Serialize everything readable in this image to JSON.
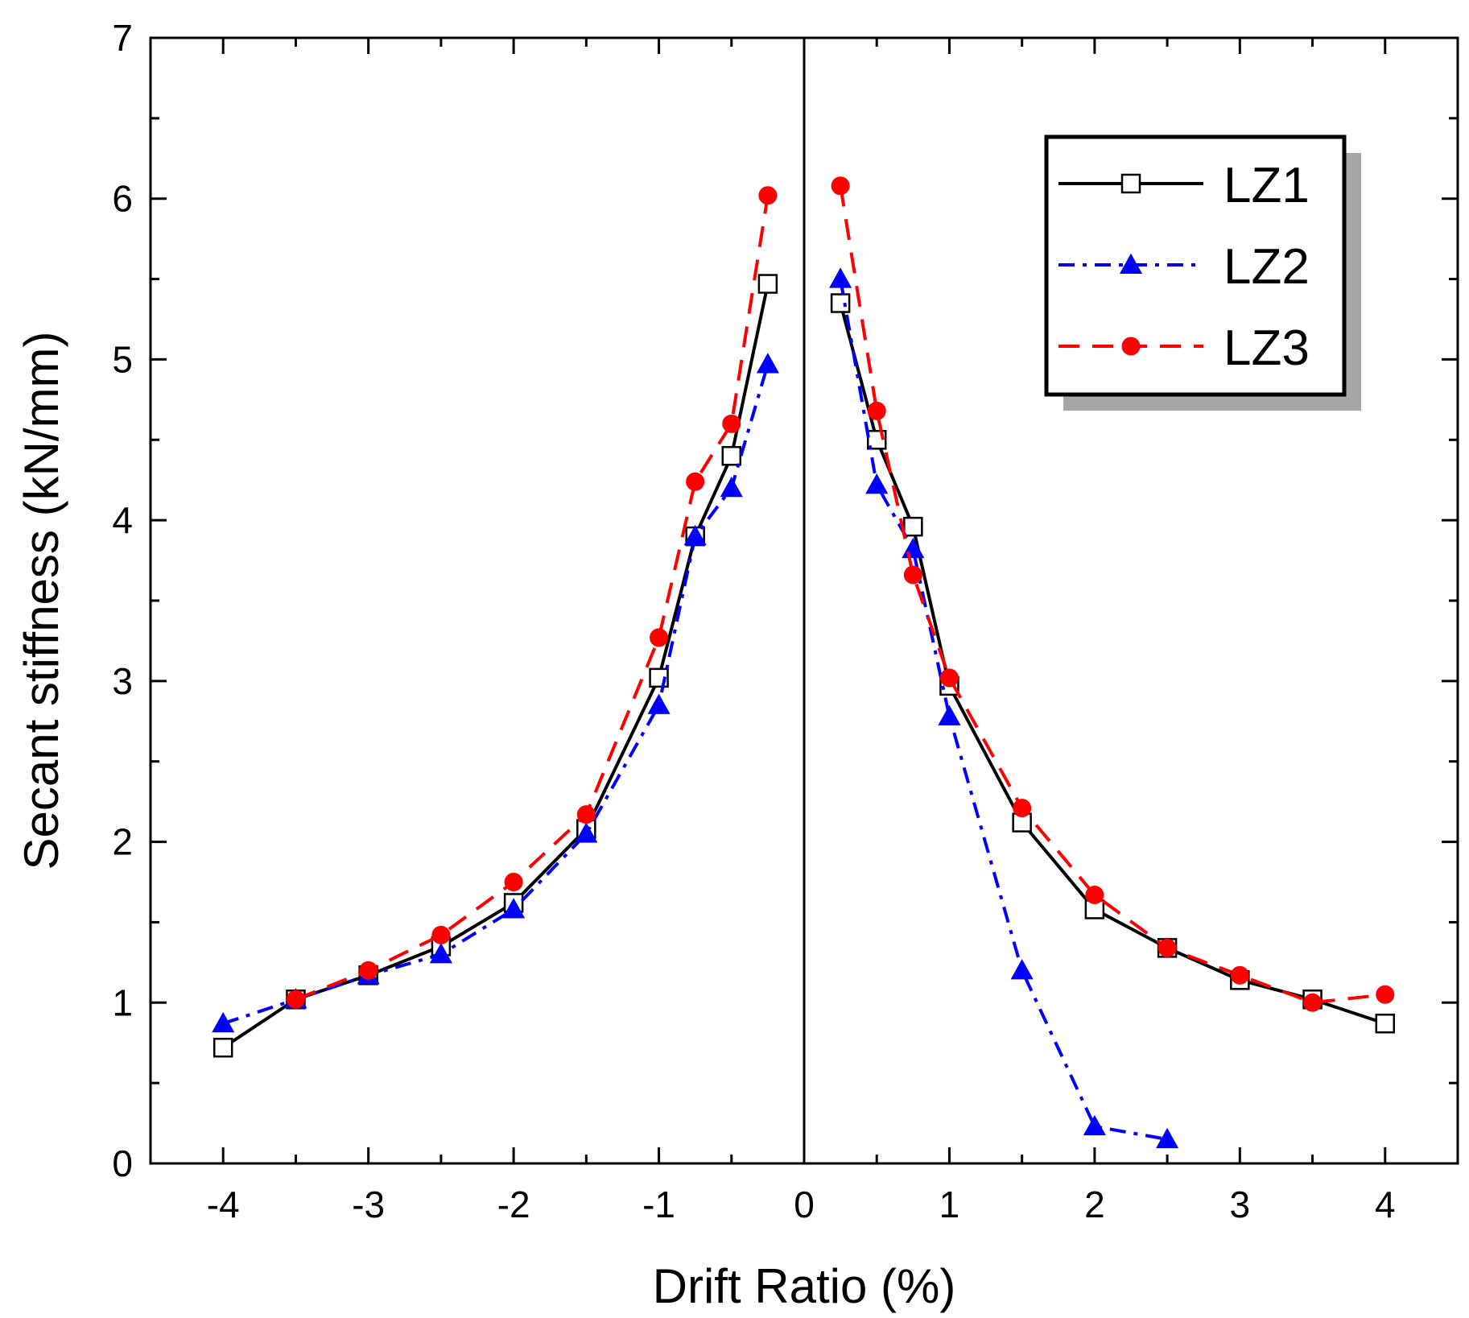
{
  "chart_data": {
    "type": "line",
    "xlabel": "Drift Ratio (%)",
    "ylabel": "Secant stiffness (kN/mm)",
    "xlim": [
      -4.5,
      4.5
    ],
    "ylim": [
      0,
      7
    ],
    "xticks": [
      -4,
      -3,
      -2,
      -1,
      0,
      1,
      2,
      3,
      4
    ],
    "yticks": [
      0,
      1,
      2,
      3,
      4,
      5,
      6,
      7
    ],
    "xtick_labels": [
      "-4",
      "-3",
      "-2",
      "-1",
      "0",
      "1",
      "2",
      "3",
      "4"
    ],
    "ytick_labels": [
      "0",
      "1",
      "2",
      "3",
      "4",
      "5",
      "6",
      "7"
    ],
    "grid": false,
    "zero_line": true,
    "legend_position": "top-right",
    "series": [
      {
        "name": "LZ1",
        "color": "#000000",
        "line_style": "solid",
        "marker": "open-square",
        "segments": [
          [
            [
              -4,
              0.72
            ],
            [
              -3.5,
              1.02
            ],
            [
              -3,
              1.17
            ],
            [
              -2.5,
              1.35
            ],
            [
              -2,
              1.62
            ],
            [
              -1.5,
              2.08
            ],
            [
              -1,
              3.02
            ],
            [
              -0.75,
              3.9
            ],
            [
              -0.5,
              4.4
            ],
            [
              -0.25,
              5.47
            ]
          ],
          [
            [
              0.25,
              5.35
            ],
            [
              0.5,
              4.5
            ],
            [
              0.75,
              3.96
            ],
            [
              1,
              2.97
            ],
            [
              1.5,
              2.12
            ],
            [
              2,
              1.58
            ],
            [
              2.5,
              1.34
            ],
            [
              3,
              1.14
            ],
            [
              3.5,
              1.02
            ],
            [
              4,
              0.87
            ]
          ]
        ]
      },
      {
        "name": "LZ2",
        "color": "#0000ff",
        "line_style": "dash-dot",
        "marker": "filled-triangle",
        "segments": [
          [
            [
              -4,
              0.87
            ],
            [
              -3.5,
              1.02
            ],
            [
              -3,
              1.17
            ],
            [
              -2.5,
              1.3
            ],
            [
              -2,
              1.58
            ],
            [
              -1.5,
              2.05
            ],
            [
              -1,
              2.85
            ],
            [
              -0.75,
              3.9
            ],
            [
              -0.5,
              4.2
            ],
            [
              -0.25,
              4.97
            ]
          ],
          [
            [
              0.25,
              5.5
            ],
            [
              0.5,
              4.22
            ],
            [
              0.75,
              3.82
            ],
            [
              1,
              2.78
            ],
            [
              1.5,
              1.2
            ],
            [
              2,
              0.23
            ],
            [
              2.5,
              0.15
            ]
          ]
        ]
      },
      {
        "name": "LZ3",
        "color": "#ff0000",
        "line_style": "dashed",
        "marker": "filled-circle",
        "segments": [
          [
            [
              -3.5,
              1.02
            ],
            [
              -3,
              1.2
            ],
            [
              -2.5,
              1.42
            ],
            [
              -2,
              1.75
            ],
            [
              -1.5,
              2.17
            ],
            [
              -1,
              3.27
            ],
            [
              -0.75,
              4.24
            ],
            [
              -0.5,
              4.6
            ],
            [
              -0.25,
              6.02
            ]
          ],
          [
            [
              0.25,
              6.08
            ],
            [
              0.5,
              4.68
            ],
            [
              0.75,
              3.66
            ],
            [
              1,
              3.02
            ],
            [
              1.5,
              2.21
            ],
            [
              2,
              1.67
            ],
            [
              2.5,
              1.34
            ],
            [
              3,
              1.17
            ],
            [
              3.5,
              1.0
            ],
            [
              4,
              1.05
            ]
          ]
        ]
      }
    ]
  }
}
